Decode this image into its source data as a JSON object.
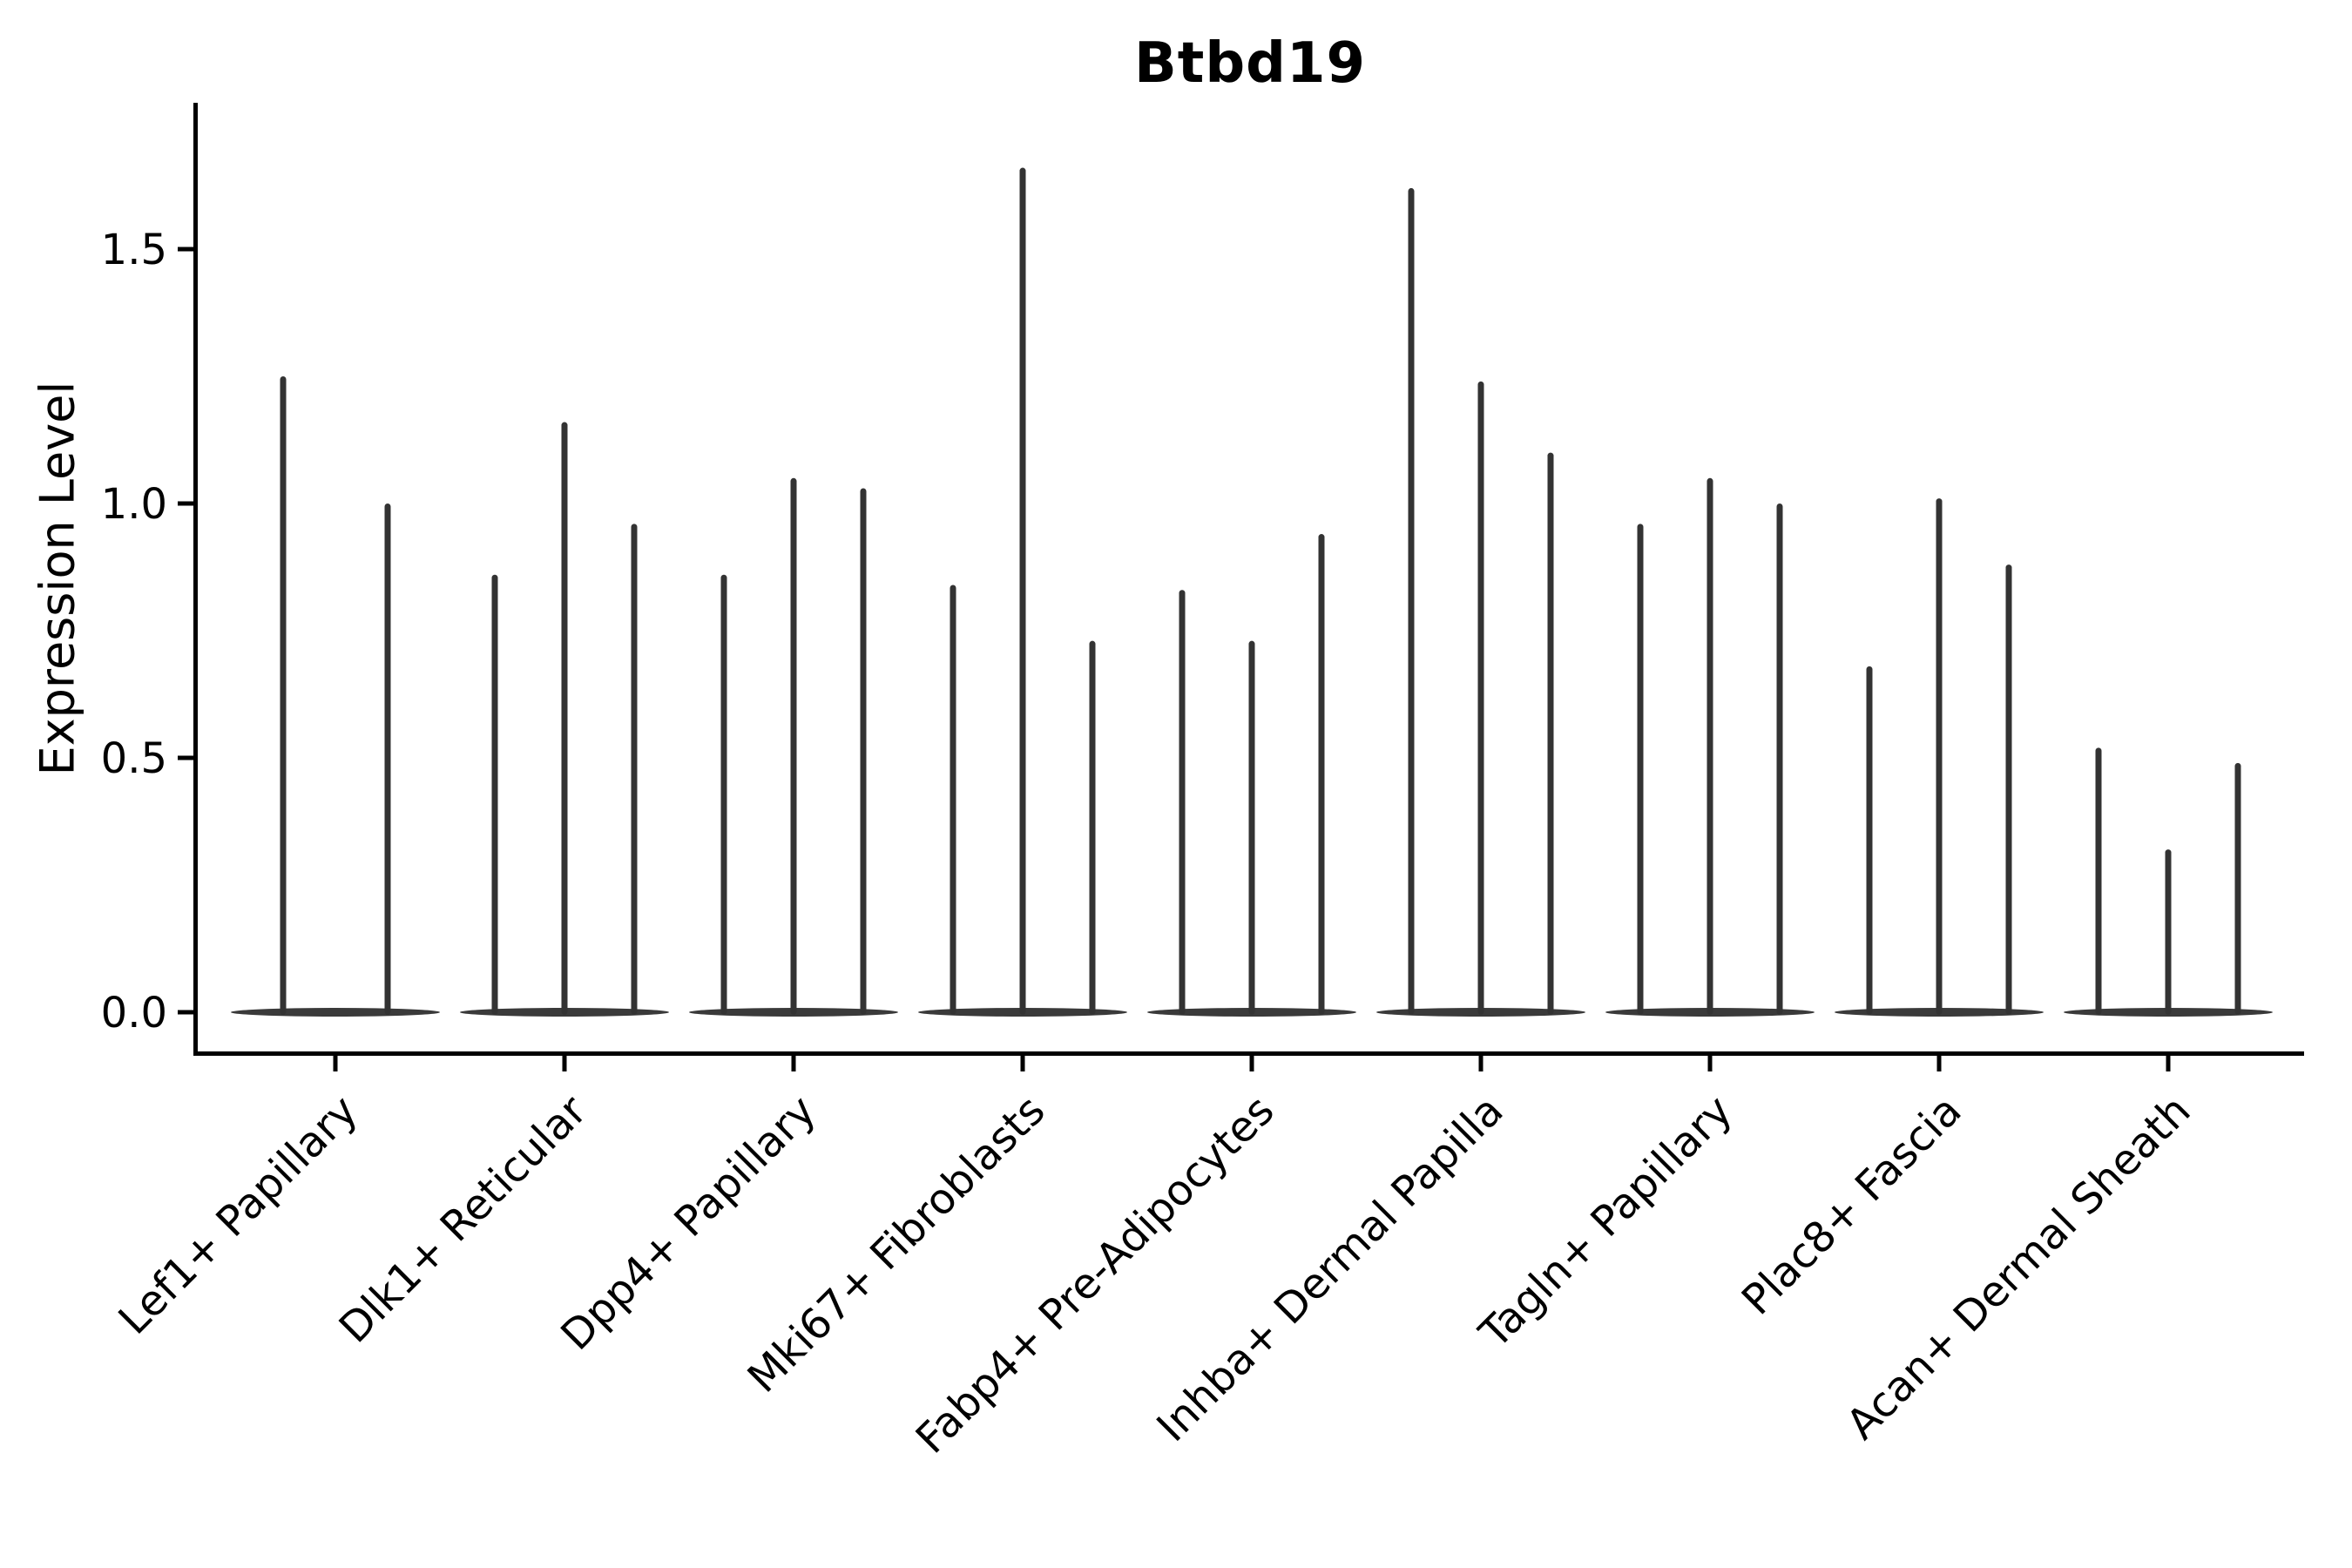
{
  "figure": {
    "title": "Btbd19",
    "ylabel": "Expression Level"
  },
  "chart_data": {
    "type": "violin",
    "title": "Btbd19",
    "xlabel": "",
    "ylabel": "Expression Level",
    "ylim": [
      0,
      1.78
    ],
    "yticks": [
      0.0,
      0.5,
      1.0,
      1.5
    ],
    "grid": false,
    "legend": "none",
    "ink_color": "#000000",
    "violin_color": "#333333",
    "violin_base_color": "#3a3a3a",
    "categories": [
      "Lef1+ Papillary",
      "Dlk1+ Reticular",
      "Dpp4+ Papillary",
      "Mki67+ Fibroblasts",
      "Fabp4+ Pre-Adipocytes",
      "Inhba+ Dermal Papilla",
      "Tagln+ Papillary",
      "Plac8+ Fascia",
      "Acan+ Dermal Sheath"
    ],
    "groups": [
      {
        "category": "Lef1+ Papillary",
        "violin_max_values": [
          1.25,
          1.0
        ]
      },
      {
        "category": "Dlk1+ Reticular",
        "violin_max_values": [
          0.86,
          1.16,
          0.96
        ]
      },
      {
        "category": "Dpp4+ Papillary",
        "violin_max_values": [
          0.86,
          1.05,
          1.03
        ]
      },
      {
        "category": "Mki67+ Fibroblasts",
        "violin_max_values": [
          0.84,
          1.66,
          0.73
        ]
      },
      {
        "category": "Fabp4+ Pre-Adipocytes",
        "violin_max_values": [
          0.83,
          0.73,
          0.94
        ]
      },
      {
        "category": "Inhba+ Dermal Papilla",
        "violin_max_values": [
          1.62,
          1.24,
          1.1
        ]
      },
      {
        "category": "Tagln+ Papillary",
        "violin_max_values": [
          0.96,
          1.05,
          1.0
        ]
      },
      {
        "category": "Plac8+ Fascia",
        "violin_max_values": [
          0.68,
          1.01,
          0.88
        ]
      },
      {
        "category": "Acan+ Dermal Sheath",
        "violin_max_values": [
          0.52,
          0.32,
          0.49
        ]
      }
    ],
    "description": "Violin plot of Btbd19 expression; every violin collapses to a wide flat base at 0 with a thin density spike rising to its maximum expression value."
  }
}
